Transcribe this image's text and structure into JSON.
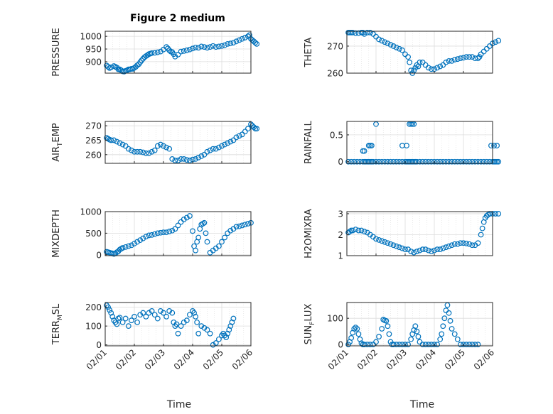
{
  "figure": {
    "title": "Figure 2 medium",
    "xlabel": "Time"
  },
  "colors": {
    "marker": "#0072BD",
    "grid": "#dcdcdc",
    "axis": "#262626"
  },
  "chart_data": [
    {
      "id": "pressure",
      "type": "scatter",
      "ylabel": "PRESSURE",
      "xlim": [
        0,
        5
      ],
      "ylim": [
        855,
        1020
      ],
      "yticks": [
        900,
        950,
        1000
      ],
      "x": [
        0.05,
        0.1,
        0.15,
        0.2,
        0.3,
        0.35,
        0.4,
        0.45,
        0.5,
        0.55,
        0.6,
        0.65,
        0.7,
        0.75,
        0.8,
        0.85,
        0.9,
        0.95,
        1.0,
        1.05,
        1.1,
        1.15,
        1.2,
        1.25,
        1.3,
        1.35,
        1.4,
        1.45,
        1.5,
        1.55,
        1.6,
        1.7,
        1.8,
        1.9,
        2.0,
        2.1,
        2.15,
        2.2,
        2.25,
        2.3,
        2.35,
        2.4,
        2.5,
        2.6,
        2.7,
        2.8,
        2.9,
        3.0,
        3.1,
        3.2,
        3.3,
        3.4,
        3.5,
        3.6,
        3.7,
        3.8,
        3.9,
        4.0,
        4.1,
        4.2,
        4.3,
        4.4,
        4.5,
        4.6,
        4.7,
        4.8,
        4.9,
        4.95,
        5.0,
        5.05,
        5.1,
        5.15,
        5.2
      ],
      "y": [
        885,
        880,
        875,
        878,
        883,
        880,
        877,
        870,
        870,
        866,
        862,
        861,
        864,
        866,
        870,
        870,
        872,
        872,
        876,
        880,
        886,
        890,
        898,
        905,
        912,
        918,
        922,
        926,
        930,
        932,
        934,
        935,
        937,
        940,
        948,
        958,
        952,
        945,
        940,
        938,
        930,
        920,
        928,
        940,
        942,
        945,
        948,
        952,
        956,
        955,
        960,
        958,
        955,
        958,
        962,
        958,
        960,
        962,
        965,
        970,
        972,
        975,
        980,
        985,
        990,
        995,
        1000,
        1005,
        990,
        985,
        980,
        975,
        970
      ]
    },
    {
      "id": "theta",
      "type": "scatter",
      "ylabel": "THETA",
      "xlim": [
        0,
        5
      ],
      "ylim": [
        260,
        275.5
      ],
      "yticks": [
        260,
        270
      ],
      "x": [
        0.05,
        0.1,
        0.15,
        0.2,
        0.3,
        0.4,
        0.5,
        0.55,
        0.6,
        0.7,
        0.8,
        0.9,
        1.0,
        1.1,
        1.2,
        1.3,
        1.4,
        1.5,
        1.6,
        1.7,
        1.8,
        1.9,
        2.0,
        2.1,
        2.15,
        2.2,
        2.25,
        2.3,
        2.35,
        2.4,
        2.45,
        2.5,
        2.6,
        2.7,
        2.8,
        2.9,
        3.0,
        3.1,
        3.2,
        3.3,
        3.4,
        3.5,
        3.6,
        3.7,
        3.8,
        3.9,
        4.0,
        4.1,
        4.2,
        4.3,
        4.4,
        4.5,
        4.55,
        4.6,
        4.7,
        4.8,
        4.9,
        5.0,
        5.1,
        5.2
      ],
      "y": [
        275,
        275,
        275,
        275,
        274.8,
        274.8,
        275,
        275,
        274.5,
        275,
        275,
        274.5,
        273.5,
        272.5,
        272,
        271.5,
        271,
        270.5,
        270,
        269.5,
        269,
        268.5,
        267,
        266,
        264,
        261,
        260,
        261,
        262,
        263,
        262.5,
        264,
        264,
        263,
        262,
        261.5,
        261.5,
        262,
        262.5,
        263,
        264,
        264.5,
        264.5,
        265,
        265.2,
        265.5,
        265.7,
        266,
        266,
        266,
        265.5,
        265.5,
        266,
        267,
        268,
        269,
        270,
        271,
        271.5,
        272
      ]
    },
    {
      "id": "air_temp",
      "type": "scatter",
      "ylabel": "AIR",
      "ylabel_sub": "T",
      "ylabel_rest": "EMP",
      "xlim": [
        0,
        5
      ],
      "ylim": [
        257,
        271.5
      ],
      "yticks": [
        260,
        265,
        270
      ],
      "x": [
        0.05,
        0.1,
        0.15,
        0.2,
        0.3,
        0.4,
        0.5,
        0.6,
        0.7,
        0.8,
        0.9,
        1.0,
        1.1,
        1.2,
        1.3,
        1.4,
        1.5,
        1.6,
        1.7,
        1.8,
        1.9,
        2.0,
        2.1,
        2.2,
        2.3,
        2.4,
        2.5,
        2.6,
        2.7,
        2.8,
        2.9,
        3.0,
        3.1,
        3.2,
        3.3,
        3.4,
        3.5,
        3.6,
        3.7,
        3.8,
        3.9,
        4.0,
        4.1,
        4.2,
        4.3,
        4.4,
        4.5,
        4.6,
        4.7,
        4.8,
        4.9,
        5.0,
        5.05,
        5.1,
        5.15,
        5.2
      ],
      "y": [
        265.8,
        265.5,
        265.2,
        265,
        265,
        264.5,
        264,
        263.5,
        263,
        262,
        261.5,
        261,
        261,
        261,
        260.8,
        260.5,
        260.5,
        261,
        261.5,
        263,
        263.5,
        263,
        262.5,
        262,
        258.5,
        258,
        258,
        258.5,
        258.5,
        258.2,
        258,
        258.3,
        258.5,
        259,
        259.5,
        260,
        261,
        261.5,
        262,
        262,
        262.5,
        263,
        263.5,
        264,
        264.5,
        265,
        266,
        266.5,
        267,
        268,
        269,
        270.5,
        270,
        269.5,
        269,
        269
      ]
    },
    {
      "id": "rainfall",
      "type": "scatter",
      "ylabel": "RAINFALL",
      "xlim": [
        0,
        5
      ],
      "ylim": [
        -0.03,
        0.75
      ],
      "yticks": [
        0,
        0.5
      ],
      "x": [
        0.05,
        0.15,
        0.25,
        0.35,
        0.45,
        0.55,
        0.6,
        0.65,
        0.7,
        0.75,
        0.8,
        0.85,
        0.9,
        1.0,
        1.1,
        1.2,
        1.3,
        1.4,
        1.5,
        1.6,
        1.7,
        1.8,
        1.9,
        2.0,
        2.05,
        2.1,
        2.15,
        2.2,
        2.25,
        2.3,
        2.35,
        2.4,
        2.5,
        2.6,
        2.7,
        2.8,
        2.9,
        3.0,
        3.1,
        3.2,
        3.3,
        3.4,
        3.5,
        3.6,
        3.7,
        3.8,
        3.9,
        4.0,
        4.1,
        4.2,
        4.3,
        4.4,
        4.5,
        4.6,
        4.7,
        4.8,
        4.9,
        5.0,
        5.05,
        5.1,
        5.15,
        5.2,
        0.55,
        0.6,
        0.75,
        0.8,
        0.85,
        1.0,
        1.9,
        2.05,
        2.15,
        2.2,
        2.25,
        2.3,
        4.95,
        5.05,
        5.15
      ],
      "y": [
        0,
        0,
        0,
        0,
        0,
        0,
        0,
        0,
        0,
        0,
        0,
        0,
        0,
        0,
        0,
        0,
        0,
        0,
        0,
        0,
        0,
        0,
        0,
        0,
        0,
        0,
        0,
        0,
        0,
        0,
        0,
        0,
        0,
        0,
        0,
        0,
        0,
        0,
        0,
        0,
        0,
        0,
        0,
        0,
        0,
        0,
        0,
        0,
        0,
        0,
        0,
        0,
        0,
        0,
        0,
        0,
        0,
        0,
        0,
        0,
        0,
        0,
        0.2,
        0.2,
        0.3,
        0.3,
        0.3,
        0.7,
        0.3,
        0.3,
        0.7,
        0.7,
        0.7,
        0.7,
        0.3,
        0.3,
        0.3
      ]
    },
    {
      "id": "mixdepth",
      "type": "scatter",
      "ylabel": "MIXDEPTH",
      "xlim": [
        0,
        5
      ],
      "ylim": [
        -20,
        1000
      ],
      "yticks": [
        0,
        500,
        1000
      ],
      "x": [
        0.05,
        0.1,
        0.15,
        0.2,
        0.25,
        0.3,
        0.35,
        0.4,
        0.45,
        0.5,
        0.55,
        0.6,
        0.7,
        0.8,
        0.9,
        1.0,
        1.1,
        1.2,
        1.3,
        1.4,
        1.5,
        1.6,
        1.7,
        1.8,
        1.9,
        2.0,
        2.1,
        2.2,
        2.3,
        2.4,
        2.5,
        2.6,
        2.7,
        2.8,
        2.9,
        3.0,
        3.05,
        3.1,
        3.15,
        3.2,
        3.25,
        3.3,
        3.35,
        3.4,
        3.45,
        3.5,
        3.6,
        3.7,
        3.8,
        3.9,
        4.0,
        4.1,
        4.2,
        4.3,
        4.4,
        4.5,
        4.6,
        4.7,
        4.8,
        4.9,
        5.0
      ],
      "y": [
        70,
        60,
        50,
        40,
        30,
        20,
        30,
        60,
        80,
        120,
        140,
        160,
        180,
        200,
        220,
        260,
        300,
        340,
        380,
        420,
        450,
        460,
        480,
        500,
        510,
        520,
        520,
        540,
        560,
        600,
        680,
        760,
        820,
        860,
        900,
        550,
        200,
        100,
        300,
        400,
        600,
        700,
        720,
        740,
        500,
        300,
        50,
        100,
        150,
        200,
        300,
        400,
        500,
        560,
        600,
        650,
        660,
        680,
        700,
        720,
        740
      ]
    },
    {
      "id": "h2omixra",
      "type": "scatter",
      "ylabel": "H2OMIXRA",
      "xlim": [
        0,
        5
      ],
      "ylim": [
        1,
        3.1
      ],
      "yticks": [
        1,
        2,
        3
      ],
      "x": [
        0.05,
        0.1,
        0.15,
        0.2,
        0.3,
        0.4,
        0.5,
        0.6,
        0.7,
        0.8,
        0.9,
        1.0,
        1.1,
        1.2,
        1.3,
        1.4,
        1.5,
        1.6,
        1.7,
        1.8,
        1.9,
        2.0,
        2.1,
        2.2,
        2.3,
        2.4,
        2.5,
        2.6,
        2.7,
        2.8,
        2.9,
        3.0,
        3.1,
        3.2,
        3.3,
        3.4,
        3.5,
        3.6,
        3.7,
        3.8,
        3.9,
        4.0,
        4.1,
        4.2,
        4.3,
        4.4,
        4.5,
        4.6,
        4.65,
        4.7,
        4.75,
        4.8,
        4.85,
        4.9,
        5.0,
        5.1,
        5.2
      ],
      "y": [
        2.1,
        2.15,
        2.2,
        2.2,
        2.25,
        2.2,
        2.2,
        2.15,
        2.1,
        2.0,
        1.9,
        1.8,
        1.75,
        1.7,
        1.65,
        1.6,
        1.55,
        1.5,
        1.45,
        1.4,
        1.35,
        1.3,
        1.3,
        1.2,
        1.15,
        1.2,
        1.25,
        1.3,
        1.3,
        1.25,
        1.2,
        1.25,
        1.3,
        1.3,
        1.35,
        1.4,
        1.45,
        1.5,
        1.55,
        1.55,
        1.6,
        1.6,
        1.58,
        1.55,
        1.5,
        1.5,
        1.6,
        2.0,
        2.3,
        2.6,
        2.8,
        2.9,
        2.95,
        3.0,
        3.0,
        3.0,
        3.0
      ]
    },
    {
      "id": "terr_msl",
      "type": "scatter",
      "ylabel": "TERR",
      "ylabel_sub": "M",
      "ylabel_rest": "SL",
      "xlim": [
        0,
        5
      ],
      "ylim": [
        -5,
        225
      ],
      "yticks": [
        0,
        100,
        200
      ],
      "x": [
        0.05,
        0.1,
        0.15,
        0.2,
        0.25,
        0.3,
        0.35,
        0.4,
        0.45,
        0.5,
        0.6,
        0.7,
        0.8,
        0.9,
        1.0,
        1.1,
        1.2,
        1.3,
        1.4,
        1.5,
        1.6,
        1.7,
        1.8,
        1.9,
        2.0,
        2.1,
        2.2,
        2.3,
        2.35,
        2.4,
        2.45,
        2.5,
        2.6,
        2.7,
        2.8,
        2.9,
        3.0,
        3.05,
        3.1,
        3.15,
        3.2,
        3.3,
        3.4,
        3.5,
        3.6,
        3.7,
        3.8,
        3.9,
        4.0,
        4.05,
        4.1,
        4.15,
        4.2,
        4.25,
        4.3,
        4.35,
        4.4
      ],
      "y": [
        210,
        200,
        185,
        170,
        150,
        130,
        120,
        110,
        140,
        145,
        120,
        140,
        100,
        130,
        150,
        120,
        160,
        170,
        150,
        170,
        180,
        160,
        140,
        180,
        170,
        150,
        180,
        170,
        120,
        100,
        110,
        60,
        100,
        120,
        130,
        160,
        180,
        170,
        150,
        120,
        60,
        100,
        90,
        80,
        60,
        0,
        10,
        30,
        50,
        60,
        50,
        40,
        60,
        80,
        100,
        120,
        140
      ]
    },
    {
      "id": "sun_flux",
      "type": "scatter",
      "ylabel": "SUN",
      "ylabel_sub": "F",
      "ylabel_rest": "LUX",
      "xlim": [
        0,
        5
      ],
      "ylim": [
        -5,
        160
      ],
      "yticks": [
        0,
        100
      ],
      "x": [
        0.05,
        0.1,
        0.15,
        0.2,
        0.25,
        0.3,
        0.35,
        0.4,
        0.45,
        0.5,
        0.55,
        0.6,
        0.7,
        0.8,
        0.9,
        1.0,
        1.1,
        1.2,
        1.25,
        1.3,
        1.35,
        1.4,
        1.45,
        1.5,
        1.55,
        1.6,
        1.7,
        1.8,
        1.9,
        2.0,
        2.1,
        2.2,
        2.25,
        2.3,
        2.35,
        2.4,
        2.45,
        2.5,
        2.6,
        2.7,
        2.8,
        2.9,
        3.0,
        3.1,
        3.2,
        3.25,
        3.3,
        3.35,
        3.4,
        3.45,
        3.5,
        3.55,
        3.6,
        3.7,
        3.8,
        3.9,
        4.0,
        4.1,
        4.2,
        4.3,
        4.4,
        4.5
      ],
      "y": [
        0,
        10,
        25,
        45,
        60,
        65,
        60,
        40,
        20,
        5,
        0,
        0,
        0,
        0,
        0,
        10,
        30,
        60,
        95,
        92,
        90,
        70,
        40,
        10,
        0,
        0,
        0,
        0,
        0,
        0,
        0,
        20,
        40,
        55,
        70,
        50,
        30,
        10,
        0,
        0,
        0,
        0,
        0,
        0,
        20,
        40,
        70,
        100,
        130,
        150,
        120,
        90,
        60,
        40,
        20,
        0,
        0,
        0,
        0,
        0,
        0,
        0
      ]
    }
  ],
  "xaxis": {
    "ticks": [
      "02/01",
      "02/02",
      "02/03",
      "02/04",
      "02/05",
      "02/06"
    ]
  }
}
